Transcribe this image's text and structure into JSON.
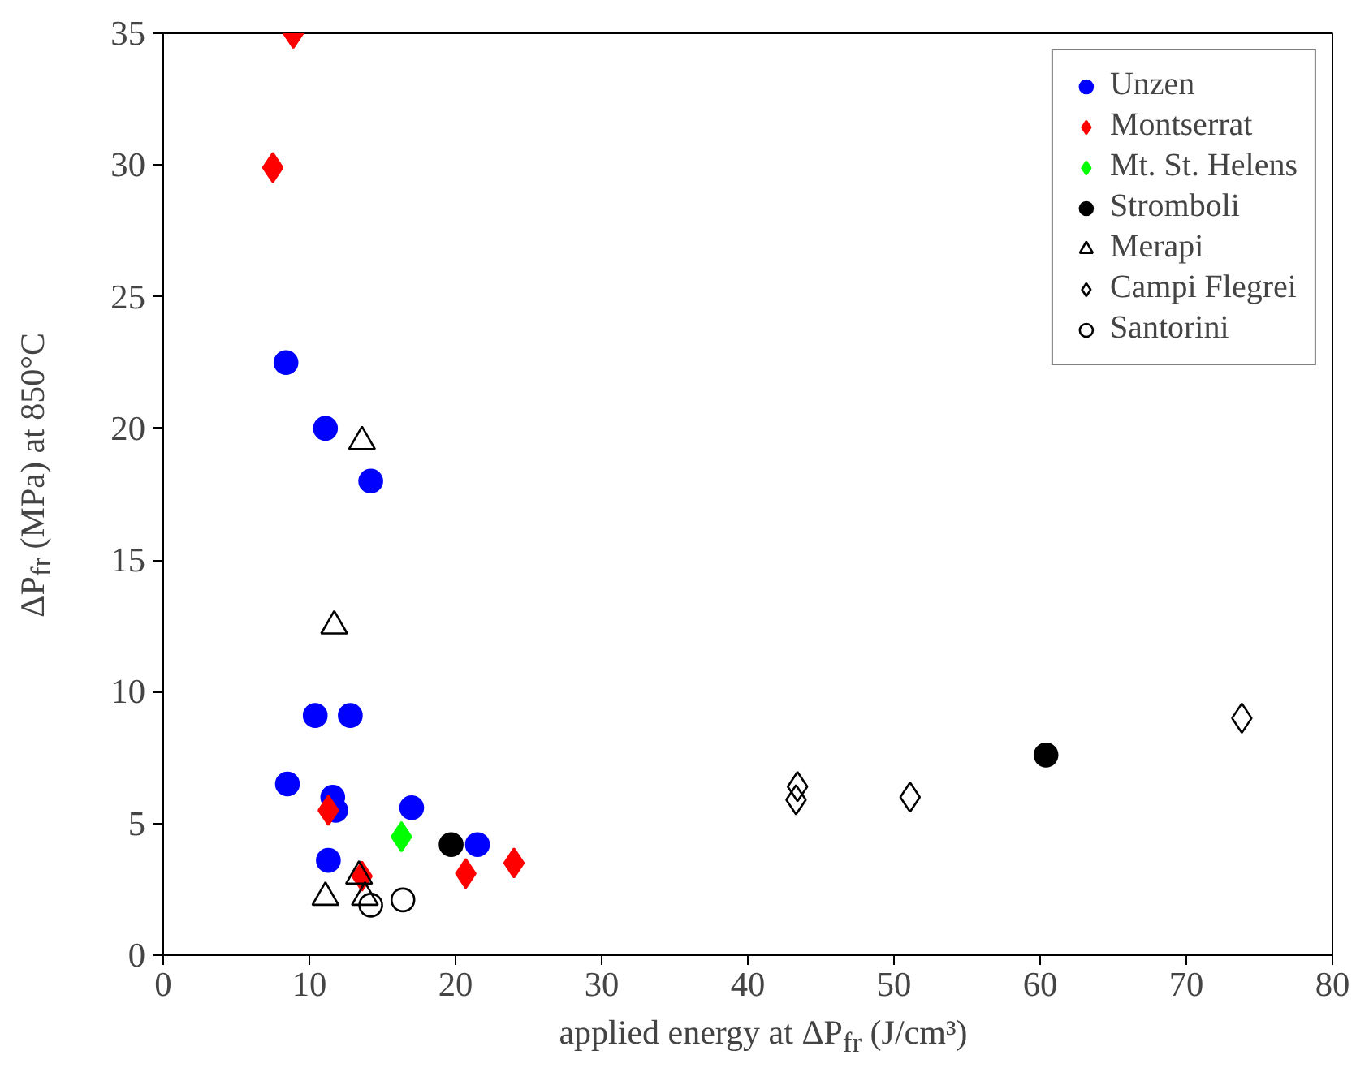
{
  "chart_data": {
    "type": "scatter",
    "xlabel": "applied energy at ΔP$_{fr}$ (J/cm³)",
    "ylabel": "ΔP$_{fr}$ (MPa) at 850°C",
    "xlim": [
      0,
      80
    ],
    "ylim": [
      0,
      35
    ],
    "xticks": [
      0,
      10,
      20,
      30,
      40,
      50,
      60,
      70,
      80
    ],
    "yticks": [
      0,
      5,
      10,
      15,
      20,
      25,
      30,
      35
    ],
    "grid": false,
    "legend": "top right",
    "series": [
      {
        "name": "Unzen",
        "color": "#0000ff",
        "marker": "circle",
        "x": [
          8.4,
          11.1,
          14.2,
          10.4,
          12.8,
          8.5,
          11.6,
          11.8,
          11.3,
          17.0,
          21.5
        ],
        "values": [
          22.5,
          20,
          18,
          9.1,
          9.1,
          6.5,
          6.0,
          5.5,
          3.6,
          5.6,
          4.2
        ]
      },
      {
        "name": "Montserrat",
        "color": "#ff0000",
        "marker": "diamond",
        "x": [
          8.9,
          7.5,
          11.3,
          13.6,
          20.7,
          24.0
        ],
        "values": [
          35,
          29.9,
          5.5,
          3.0,
          3.1,
          3.5
        ]
      },
      {
        "name": "Mt. St. Helens",
        "color": "#00ff00",
        "marker": "diamond",
        "x": [
          16.3
        ],
        "values": [
          4.5
        ]
      },
      {
        "name": "Stromboli",
        "color": "#000000",
        "marker": "circle",
        "x": [
          19.7,
          60.4
        ],
        "values": [
          4.2,
          7.6
        ]
      },
      {
        "name": "Merapi",
        "color": null,
        "marker": "triangle",
        "x": [
          13.6,
          11.7,
          11.1,
          13.4,
          13.8
        ],
        "values": [
          19.5,
          12.5,
          2.2,
          3.0,
          2.2
        ]
      },
      {
        "name": "Campi Flegrei",
        "color": null,
        "marker": "diamond",
        "x": [
          43.4,
          43.3,
          51.1,
          73.8
        ],
        "values": [
          6.4,
          5.9,
          6.0,
          9.0
        ]
      },
      {
        "name": "Santorini",
        "color": null,
        "marker": "circle",
        "x": [
          14.2,
          16.4
        ],
        "values": [
          1.9,
          2.1
        ]
      }
    ]
  }
}
